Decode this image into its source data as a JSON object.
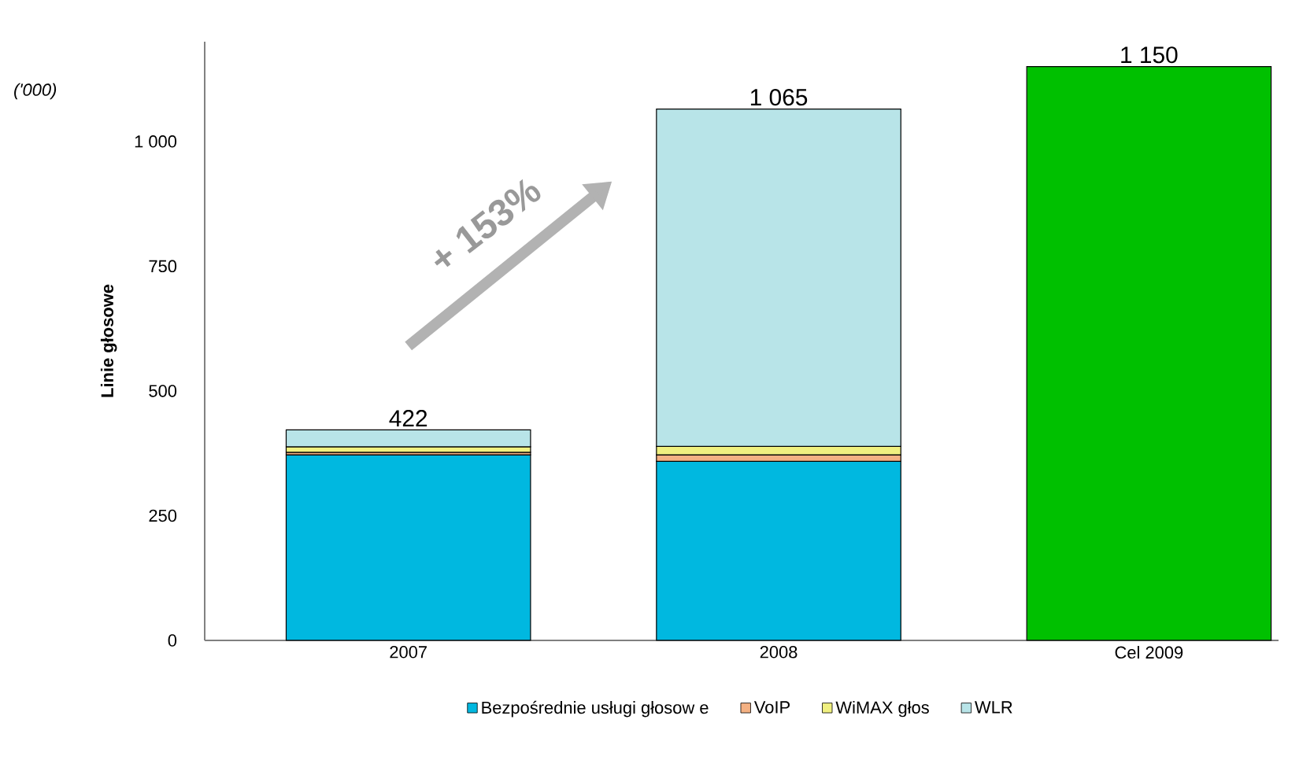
{
  "chart_data": {
    "type": "bar",
    "stacked": true,
    "ylabel": "Linie głosowe",
    "annotations": [
      "('000)",
      "+ 153%"
    ],
    "categories": [
      "2007",
      "2008",
      "Cel 2009"
    ],
    "series": [
      {
        "name": "Bezpośrednie usługi głosow e",
        "color": "#00b8e0",
        "values": [
          372,
          359,
          null
        ]
      },
      {
        "name": "VoIP",
        "color": "#f4b183",
        "values": [
          5,
          13,
          null
        ]
      },
      {
        "name": "WiMAX głos",
        "color": "#f0f080",
        "values": [
          11,
          17,
          null
        ]
      },
      {
        "name": "WLR",
        "color": "#b8e4e8",
        "values": [
          34,
          676,
          null
        ]
      },
      {
        "color": "#00c000",
        "values": [
          null,
          null,
          1150
        ]
      }
    ],
    "totals": [
      "422",
      "1 065",
      "1 150"
    ],
    "ylim": [
      0,
      1200
    ],
    "yticks": [
      0,
      250,
      500,
      750,
      {
        "value": 1000,
        "label": "1 000"
      }
    ],
    "grid": false,
    "legend": "bottom"
  }
}
